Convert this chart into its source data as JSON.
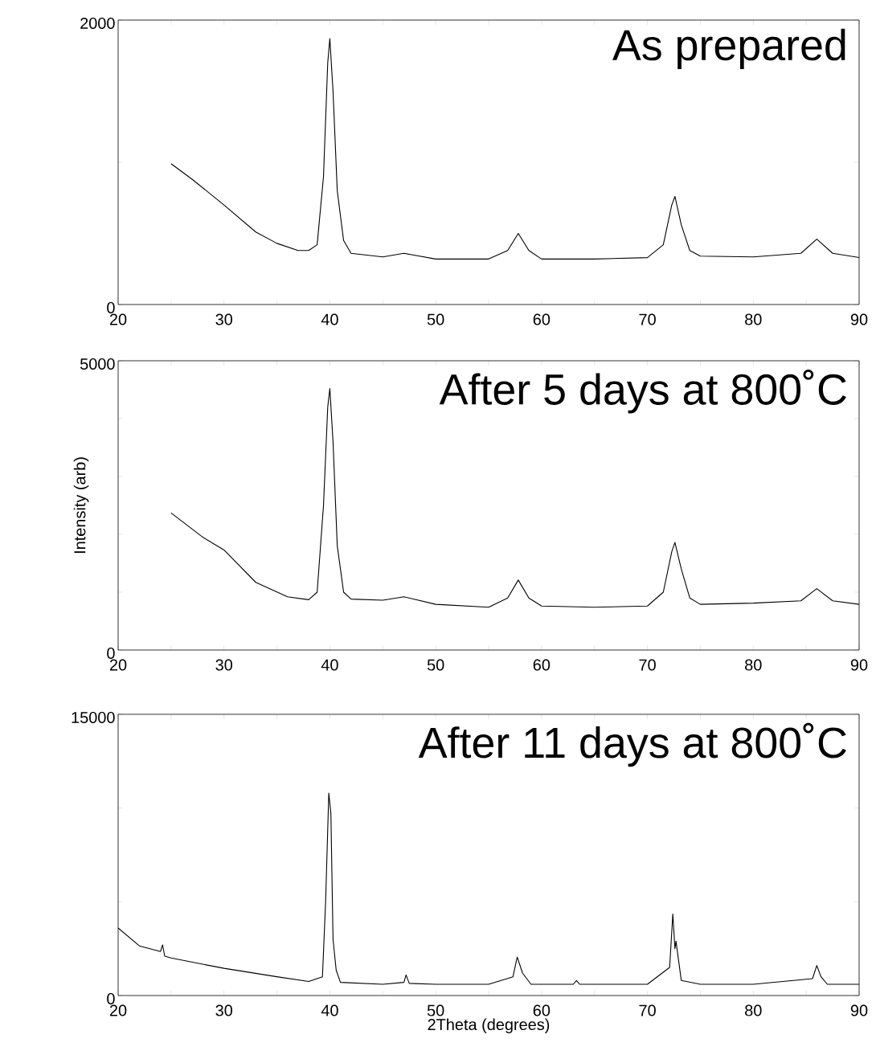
{
  "chart_data": [
    {
      "type": "line",
      "title": "As prepared",
      "xlim": [
        20,
        90
      ],
      "ylim": [
        0,
        2000
      ],
      "xticks": [
        20,
        {
          "value": 25,
          "label": null
        },
        30,
        {
          "value": 35,
          "label": null
        },
        40,
        {
          "value": 45,
          "label": null
        },
        50,
        {
          "value": 55,
          "label": null
        },
        60,
        {
          "value": 65,
          "label": null
        },
        70,
        {
          "value": 75,
          "label": null
        },
        80,
        {
          "value": 85,
          "label": null
        },
        90
      ],
      "yticks": [
        0,
        {
          "value": 1000,
          "label": null
        },
        2000
      ],
      "marker": "none",
      "series": [
        {
          "color": "#000000",
          "x": [
            25,
            27,
            30,
            33,
            35,
            37,
            38,
            38.8,
            39.4,
            39.8,
            40,
            40.3,
            40.7,
            41.3,
            42,
            45,
            47,
            50,
            55,
            56.8,
            57.8,
            58.8,
            60,
            65,
            70,
            71.5,
            72.3,
            72.6,
            73.2,
            74,
            75,
            80,
            84.5,
            86,
            87.5,
            90
          ],
          "values": [
            990,
            880,
            700,
            510,
            430,
            380,
            380,
            420,
            900,
            1700,
            1870,
            1500,
            800,
            450,
            360,
            335,
            360,
            320,
            320,
            380,
            500,
            380,
            320,
            320,
            330,
            420,
            700,
            760,
            560,
            380,
            340,
            335,
            360,
            460,
            360,
            330
          ]
        }
      ]
    },
    {
      "type": "line",
      "title": "After 5 days at 800˚C",
      "ylabel": "Intensity (arb)",
      "xlim": [
        20,
        90
      ],
      "ylim": [
        0,
        5000
      ],
      "xticks": [
        20,
        {
          "value": 25,
          "label": null
        },
        30,
        {
          "value": 35,
          "label": null
        },
        40,
        {
          "value": 45,
          "label": null
        },
        50,
        {
          "value": 55,
          "label": null
        },
        60,
        {
          "value": 65,
          "label": null
        },
        70,
        {
          "value": 75,
          "label": null
        },
        80,
        {
          "value": 85,
          "label": null
        },
        90
      ],
      "yticks": [
        0,
        {
          "value": 1000,
          "label": null
        },
        {
          "value": 2000,
          "label": null
        },
        {
          "value": 3000,
          "label": null
        },
        {
          "value": 4000,
          "label": null
        },
        5000
      ],
      "marker": "none",
      "series": [
        {
          "color": "#000000",
          "x": [
            25,
            28,
            30,
            33,
            36,
            38,
            38.8,
            39.4,
            39.8,
            40,
            40.3,
            40.7,
            41.3,
            42,
            45,
            47,
            50,
            55,
            56.8,
            57.8,
            58.8,
            60,
            65,
            70,
            71.5,
            72.3,
            72.6,
            73.2,
            74,
            75,
            80,
            84.5,
            86,
            87.5,
            90
          ],
          "values": [
            2370,
            1950,
            1730,
            1170,
            920,
            870,
            1000,
            2500,
            4200,
            4520,
            3600,
            1800,
            1000,
            880,
            860,
            920,
            790,
            740,
            900,
            1210,
            900,
            760,
            740,
            760,
            1000,
            1700,
            1860,
            1400,
            900,
            790,
            810,
            850,
            1060,
            850,
            790
          ]
        }
      ]
    },
    {
      "type": "line",
      "title": "After 11 days at 800˚C",
      "xlabel": "2Theta (degrees)",
      "xlim": [
        20,
        90
      ],
      "ylim": [
        0,
        15000
      ],
      "xticks": [
        20,
        {
          "value": 25,
          "label": null
        },
        30,
        {
          "value": 35,
          "label": null
        },
        40,
        {
          "value": 45,
          "label": null
        },
        50,
        {
          "value": 55,
          "label": null
        },
        60,
        {
          "value": 65,
          "label": null
        },
        70,
        {
          "value": 75,
          "label": null
        },
        80,
        {
          "value": 85,
          "label": null
        },
        90
      ],
      "yticks": [
        0,
        {
          "value": 5000,
          "label": null
        },
        {
          "value": 10000,
          "label": null
        },
        15000
      ],
      "marker": "none",
      "series": [
        {
          "color": "#000000",
          "x": [
            20,
            22,
            24,
            24.2,
            24.4,
            25,
            30,
            35,
            38,
            39.3,
            39.6,
            39.9,
            40.1,
            40.3,
            40.6,
            41,
            45,
            47,
            47.2,
            47.5,
            50,
            55,
            57.3,
            57.7,
            58.2,
            59,
            63,
            63.3,
            63.6,
            70,
            72.1,
            72.4,
            72.6,
            72.7,
            73.2,
            75,
            80,
            85.6,
            86,
            86.4,
            87,
            90
          ],
          "values": [
            3600,
            2650,
            2350,
            2700,
            2100,
            2000,
            1450,
            1000,
            750,
            1000,
            5000,
            10800,
            9700,
            3000,
            1350,
            700,
            600,
            700,
            1100,
            650,
            600,
            600,
            1000,
            2050,
            1200,
            600,
            600,
            800,
            600,
            600,
            1500,
            4350,
            2500,
            2900,
            800,
            600,
            600,
            900,
            1600,
            1000,
            600,
            600
          ]
        }
      ]
    }
  ]
}
